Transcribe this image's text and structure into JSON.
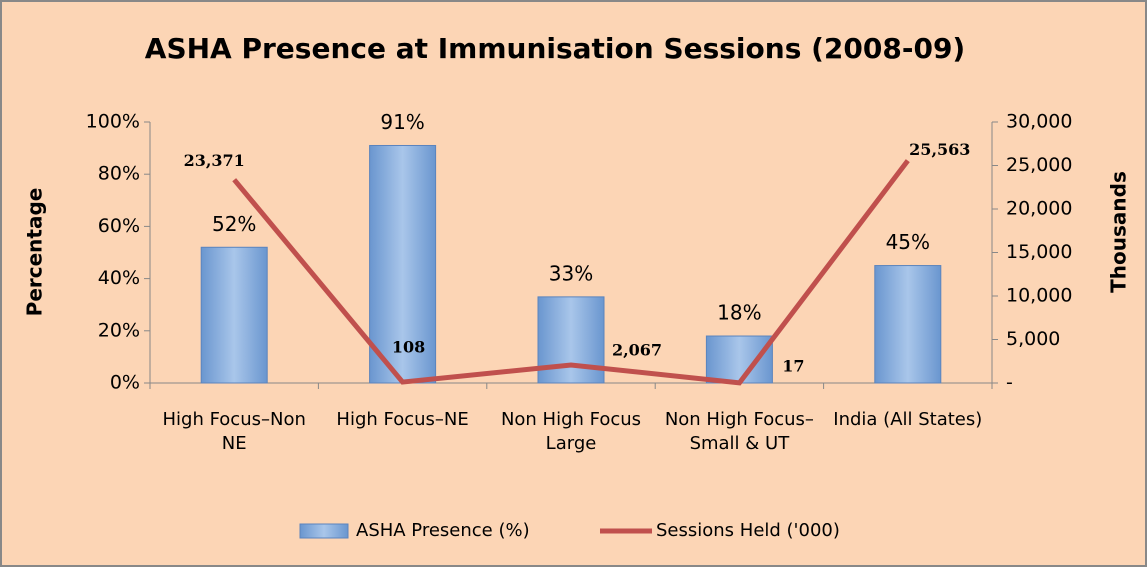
{
  "chart_data": {
    "type": "bar",
    "title": "ASHA Presence at Immunisation Sessions (2008-09)",
    "y_label": "Percentage",
    "y2_label": "Thousands",
    "categories": [
      "High Focus–Non NE",
      "High Focus–NE",
      "Non High Focus Large",
      "Non High Focus–Small & UT",
      "India (All States)"
    ],
    "series": [
      {
        "name": "ASHA Presence (%)",
        "type": "bar",
        "color": "#8eb4e3",
        "values": [
          52,
          91,
          33,
          18,
          45
        ],
        "value_labels": [
          "52%",
          "91%",
          "33%",
          "18%",
          "45%"
        ]
      },
      {
        "name": "Sessions Held ('000)",
        "type": "line",
        "axis": "y2",
        "color": "#c0504d",
        "values": [
          23371,
          108,
          2067,
          17,
          25563
        ],
        "value_labels": [
          "23,371",
          "108",
          "2,067",
          "17",
          "25,563"
        ]
      }
    ],
    "ylim": [
      0,
      100
    ],
    "yticks": [
      {
        "value": 0,
        "label": "0%"
      },
      {
        "value": 20,
        "label": "20%"
      },
      {
        "value": 40,
        "label": "40%"
      },
      {
        "value": 60,
        "label": "60%"
      },
      {
        "value": 80,
        "label": "80%"
      },
      {
        "value": 100,
        "label": "100%"
      }
    ],
    "y2lim": [
      0,
      30000
    ],
    "y2ticks": [
      {
        "value": 0,
        "label": "-"
      },
      {
        "value": 5000,
        "label": "5,000"
      },
      {
        "value": 10000,
        "label": "10,000"
      },
      {
        "value": 15000,
        "label": "15,000"
      },
      {
        "value": 20000,
        "label": "20,000"
      },
      {
        "value": 25000,
        "label": "25,000"
      },
      {
        "value": 30000,
        "label": "30,000"
      }
    ],
    "legend": "bottom"
  }
}
